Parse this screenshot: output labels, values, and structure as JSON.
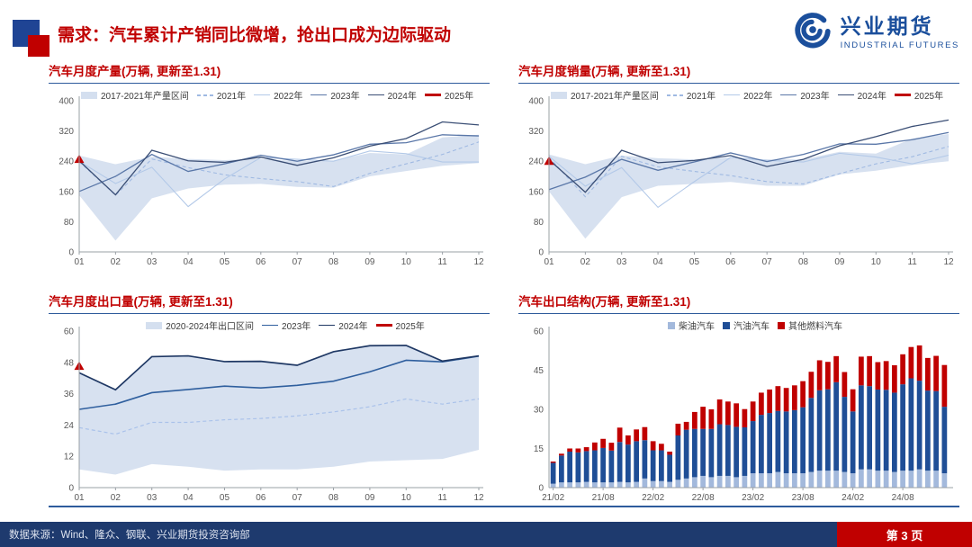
{
  "header": {
    "title": "需求：汽车累计产销同比微增，抢出口成为边际驱动",
    "logo_cn": "兴业期货",
    "logo_en": "INDUSTRIAL FUTURES"
  },
  "footer": {
    "source": "数据来源：Wind、隆众、钢联、兴业期货投资咨询部",
    "page": "第 3 页"
  },
  "colors": {
    "accent-red": "#c00000",
    "accent-blue": "#1f4494",
    "rule-blue": "#2e5b9c",
    "footer-bg": "#1e3a6e",
    "logo-blue": "#1b4f9c"
  },
  "chart_data": [
    {
      "type": "line",
      "title": "汽车月度产量(万辆, 更新至1.31)",
      "x": [
        "01",
        "02",
        "03",
        "04",
        "05",
        "06",
        "07",
        "08",
        "09",
        "10",
        "11",
        "12"
      ],
      "ylim": [
        0,
        400
      ],
      "yticks": [
        0,
        80,
        160,
        240,
        320,
        400
      ],
      "band": {
        "name": "2017-2021年产量区间",
        "color": "#cdd9ec",
        "low": [
          150,
          30,
          142,
          168,
          178,
          180,
          172,
          170,
          200,
          214,
          228,
          235
        ],
        "high": [
          255,
          232,
          252,
          246,
          243,
          246,
          240,
          242,
          262,
          258,
          303,
          310
        ]
      },
      "series": [
        {
          "name": "2021年",
          "color": "#9fb9e2",
          "dash": true,
          "width": 1.1,
          "values": [
            239,
            150,
            246,
            223,
            204,
            194,
            186,
            173,
            208,
            233,
            258,
            291
          ]
        },
        {
          "name": "2022年",
          "color": "#b3c9e8",
          "width": 1.1,
          "values": [
            240,
            181,
            224,
            120,
            193,
            250,
            245,
            240,
            267,
            260,
            238,
            238
          ]
        },
        {
          "name": "2023年",
          "color": "#5a77a8",
          "width": 1.3,
          "values": [
            160,
            200,
            258,
            213,
            233,
            256,
            240,
            257,
            285,
            289,
            310,
            307
          ]
        },
        {
          "name": "2024年",
          "color": "#3a4e75",
          "width": 1.3,
          "values": [
            241,
            151,
            269,
            241,
            237,
            251,
            229,
            249,
            280,
            300,
            344,
            336
          ]
        },
        {
          "name": "2025年",
          "color": "#c00000",
          "marker": "triangle",
          "width": 3,
          "values": [
            245
          ]
        }
      ]
    },
    {
      "type": "line",
      "title": "汽车月度销量(万辆, 更新至1.31)",
      "x": [
        "01",
        "02",
        "03",
        "04",
        "05",
        "06",
        "07",
        "08",
        "09",
        "10",
        "11",
        "12"
      ],
      "ylim": [
        0,
        400
      ],
      "yticks": [
        0,
        80,
        160,
        240,
        320,
        400
      ],
      "band": {
        "name": "2017-2021年产量区间",
        "color": "#cdd9ec",
        "low": [
          160,
          35,
          145,
          175,
          180,
          185,
          175,
          175,
          205,
          215,
          230,
          240
        ],
        "high": [
          258,
          232,
          255,
          248,
          245,
          250,
          245,
          245,
          265,
          260,
          300,
          312
        ]
      },
      "series": [
        {
          "name": "2021年",
          "color": "#9fb9e2",
          "dash": true,
          "width": 1.1,
          "values": [
            250,
            146,
            253,
            225,
            213,
            202,
            186,
            180,
            207,
            233,
            252,
            279
          ]
        },
        {
          "name": "2022年",
          "color": "#b3c9e8",
          "width": 1.1,
          "values": [
            253,
            174,
            223,
            118,
            186,
            250,
            242,
            238,
            261,
            251,
            233,
            256
          ]
        },
        {
          "name": "2023年",
          "color": "#5a77a8",
          "width": 1.3,
          "values": [
            165,
            198,
            245,
            216,
            238,
            262,
            239,
            258,
            286,
            285,
            297,
            316
          ]
        },
        {
          "name": "2024年",
          "color": "#3a4e75",
          "width": 1.3,
          "values": [
            244,
            158,
            269,
            236,
            242,
            255,
            226,
            245,
            281,
            305,
            332,
            349
          ]
        },
        {
          "name": "2025年",
          "color": "#c00000",
          "marker": "triangle",
          "width": 3,
          "values": [
            240
          ]
        }
      ]
    },
    {
      "type": "line",
      "title": "汽车月度出口量(万辆, 更新至1.31)",
      "x": [
        "01",
        "02",
        "03",
        "04",
        "05",
        "06",
        "07",
        "08",
        "09",
        "10",
        "11",
        "12"
      ],
      "ylim": [
        0,
        60
      ],
      "yticks": [
        0,
        12,
        24,
        36,
        48,
        60
      ],
      "band": {
        "name": "2020-2024年出口区间",
        "color": "#cdd9ec",
        "low": [
          7,
          5,
          9,
          8,
          6.5,
          7,
          7,
          8,
          10,
          10.5,
          11,
          14.5
        ],
        "high": [
          44,
          37.5,
          50,
          50.5,
          48.5,
          48.5,
          47,
          52,
          54.5,
          54.5,
          48.5,
          50.5
        ],
        "mid": [
          23,
          20.5,
          25,
          25,
          26,
          26.5,
          27.5,
          29,
          31,
          34,
          32,
          34
        ],
        "mid_color": "#aac2ea"
      },
      "series": [
        {
          "name": "2023年",
          "color": "#2f5f9e",
          "width": 1.6,
          "values": [
            30,
            32,
            36.4,
            37.6,
            38.9,
            38.2,
            39.2,
            40.8,
            44.4,
            48.8,
            48.2,
            50.4
          ]
        },
        {
          "name": "2024年",
          "color": "#1f3864",
          "width": 1.7,
          "values": [
            44,
            37.5,
            50.2,
            50.5,
            48.3,
            48.4,
            46.9,
            52.1,
            54.4,
            54.5,
            48.5,
            50.5
          ]
        },
        {
          "name": "2025年",
          "color": "#c00000",
          "marker": "triangle",
          "width": 3,
          "values": [
            46.5
          ]
        }
      ]
    },
    {
      "type": "stacked-bar",
      "title": "汽车出口结构(万辆, 更新至1.31)",
      "ylim": [
        0,
        60
      ],
      "yticks": [
        0,
        15,
        30,
        45,
        60
      ],
      "months": [
        "21/02",
        "21/03",
        "21/04",
        "21/05",
        "21/06",
        "21/07",
        "21/08",
        "21/09",
        "21/10",
        "21/11",
        "21/12",
        "22/01",
        "22/02",
        "22/03",
        "22/04",
        "22/05",
        "22/06",
        "22/07",
        "22/08",
        "22/09",
        "22/10",
        "22/11",
        "22/12",
        "23/01",
        "23/02",
        "23/03",
        "23/04",
        "23/05",
        "23/06",
        "23/07",
        "23/08",
        "23/09",
        "23/10",
        "23/11",
        "23/12",
        "24/01",
        "24/02",
        "24/03",
        "24/04",
        "24/05",
        "24/06",
        "24/07",
        "24/08",
        "24/09",
        "24/10",
        "24/11",
        "24/12",
        "25/01"
      ],
      "tick_indices": [
        0,
        6,
        12,
        18,
        24,
        30,
        36,
        42
      ],
      "series": [
        {
          "name": "柴油汽车",
          "color": "#a3b9dc",
          "values": [
            1.5,
            2,
            2,
            2,
            2.2,
            2,
            2,
            2,
            2.2,
            2,
            2.2,
            3.5,
            2.5,
            2.5,
            2.2,
            3,
            3.5,
            4,
            4.5,
            4,
            4.5,
            4.5,
            4,
            4.5,
            5.5,
            5.5,
            5.5,
            6,
            5.5,
            5.5,
            5.5,
            6,
            6.5,
            6.5,
            6.5,
            6,
            5.5,
            7,
            7,
            6.5,
            6.5,
            6,
            6.5,
            6.5,
            7,
            6.5,
            6.5,
            5.5
          ]
        },
        {
          "name": "汽油汽车",
          "color": "#1f4e96",
          "values": [
            8,
            10.3,
            11.8,
            11.5,
            11.8,
            12.3,
            13.2,
            12.2,
            15.3,
            14.5,
            15.6,
            14.7,
            11.8,
            11.8,
            10.4,
            17,
            18.7,
            18.5,
            18,
            18.5,
            19.8,
            19.5,
            19.3,
            18.6,
            20,
            22.4,
            23.1,
            23.4,
            23.7,
            24.2,
            25.3,
            28.4,
            30.8,
            31.2,
            33.9,
            28.8,
            23.7,
            32.2,
            31.9,
            31.1,
            31,
            30.4,
            33.1,
            35.4,
            34,
            30.7,
            30.5,
            25.5
          ]
        },
        {
          "name": "其他燃料汽车",
          "color": "#c00000",
          "values": [
            0.5,
            0.7,
            1.2,
            1.5,
            1.5,
            3,
            3.5,
            3,
            5.5,
            3.5,
            4.5,
            5,
            3.5,
            2.5,
            1.2,
            4.5,
            3,
            6.5,
            8.5,
            7.5,
            9.5,
            9,
            9,
            7,
            7.5,
            8.5,
            9,
            9.5,
            9,
            9.5,
            10,
            10,
            11.5,
            10.5,
            10,
            9.5,
            8.5,
            11,
            11.5,
            10.5,
            11,
            10.5,
            11.5,
            12,
            13.5,
            12.5,
            13.5,
            16
          ]
        }
      ]
    }
  ]
}
